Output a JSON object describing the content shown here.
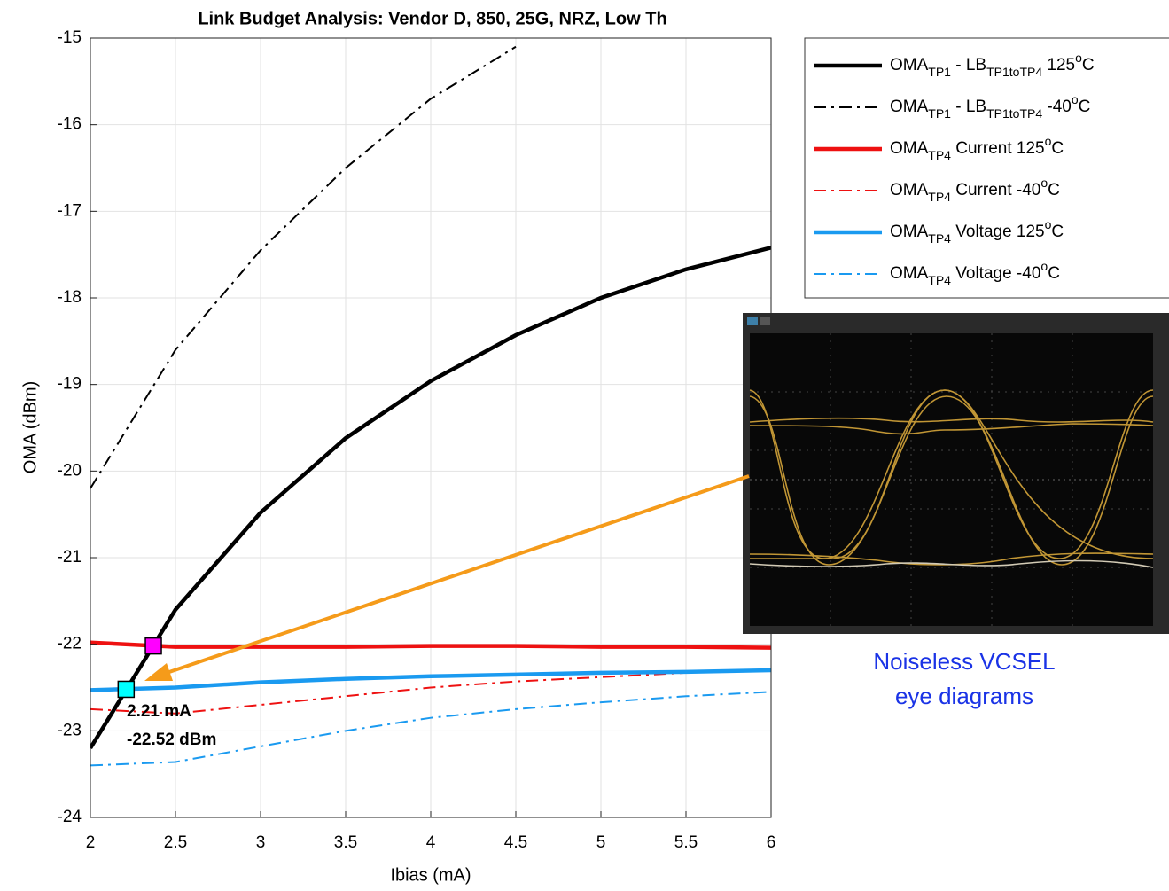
{
  "chart_data": {
    "type": "line",
    "title": "Link Budget Analysis: Vendor D, 850, 25G, NRZ, Low Th",
    "x_label": "Ibias (mA)",
    "y_label": "OMA (dBm)",
    "x": [
      2,
      2.5,
      3,
      3.5,
      4,
      4.5,
      5,
      5.5,
      6
    ],
    "xlim": [
      2,
      6
    ],
    "xticks": [
      2,
      2.5,
      3,
      3.5,
      4,
      4.5,
      5,
      5.5,
      6
    ],
    "ylim": [
      -24,
      -15
    ],
    "yticks": [
      -24,
      -23,
      -22,
      -21,
      -20,
      -19,
      -18,
      -17,
      -16,
      -15
    ],
    "grid": true,
    "legend": "upper right",
    "series": [
      {
        "name": [
          {
            "text": "OMA"
          },
          {
            "text": "TP1",
            "sub": true
          },
          {
            "text": " - LB"
          },
          {
            "text": "TP1toTP4",
            "sub": true
          },
          {
            "text": " 125"
          },
          {
            "text": "o",
            "sup": true
          },
          {
            "text": "C"
          }
        ],
        "color": "#000000",
        "style": "solid",
        "values": [
          -23.2,
          -21.6,
          -20.48,
          -19.62,
          -18.96,
          -18.43,
          -18.0,
          -17.67,
          -17.42
        ]
      },
      {
        "name": [
          {
            "text": "OMA"
          },
          {
            "text": "TP1",
            "sub": true
          },
          {
            "text": " - LB"
          },
          {
            "text": "TP1toTP4",
            "sub": true
          },
          {
            "text": " -40"
          },
          {
            "text": "o",
            "sup": true
          },
          {
            "text": "C"
          }
        ],
        "color": "#000000",
        "style": "dashdot",
        "values": [
          -20.2,
          -18.6,
          -17.45,
          -16.5,
          -15.7,
          -15.1,
          null,
          null,
          null
        ]
      },
      {
        "name": [
          {
            "text": "OMA"
          },
          {
            "text": "TP4",
            "sub": true
          },
          {
            "text": " Current 125"
          },
          {
            "text": "o",
            "sup": true
          },
          {
            "text": "C"
          }
        ],
        "color": "#ee1111",
        "style": "solid",
        "values": [
          -21.98,
          -22.03,
          -22.03,
          -22.03,
          -22.02,
          -22.02,
          -22.03,
          -22.03,
          -22.04
        ]
      },
      {
        "name": [
          {
            "text": "OMA"
          },
          {
            "text": "TP4",
            "sub": true
          },
          {
            "text": " Current -40"
          },
          {
            "text": "o",
            "sup": true
          },
          {
            "text": "C"
          }
        ],
        "color": "#ee1111",
        "style": "dashdot",
        "values": [
          -22.75,
          -22.8,
          -22.7,
          -22.6,
          -22.5,
          -22.43,
          -22.38,
          -22.33,
          -22.3
        ]
      },
      {
        "name": [
          {
            "text": "OMA"
          },
          {
            "text": "TP4",
            "sub": true
          },
          {
            "text": " Voltage 125"
          },
          {
            "text": "o",
            "sup": true
          },
          {
            "text": "C"
          }
        ],
        "color": "#1a9af0",
        "style": "solid",
        "values": [
          -22.53,
          -22.5,
          -22.44,
          -22.4,
          -22.37,
          -22.35,
          -22.33,
          -22.32,
          -22.3
        ]
      },
      {
        "name": [
          {
            "text": "OMA"
          },
          {
            "text": "TP4",
            "sub": true
          },
          {
            "text": " Voltage -40"
          },
          {
            "text": "o",
            "sup": true
          },
          {
            "text": "C"
          }
        ],
        "color": "#1a9af0",
        "style": "dashdot",
        "values": [
          -23.4,
          -23.36,
          -23.18,
          -23.0,
          -22.85,
          -22.75,
          -22.67,
          -22.6,
          -22.55
        ]
      }
    ],
    "markers": [
      {
        "x": 2.37,
        "y": -22.02,
        "color": "#ff00ff"
      },
      {
        "x": 2.21,
        "y": -22.52,
        "color": "#00ffff"
      }
    ],
    "annotations": [
      "2.21 mA",
      "-22.52 dBm"
    ],
    "caption": [
      "Noiseless VCSEL",
      "eye diagrams"
    ]
  }
}
